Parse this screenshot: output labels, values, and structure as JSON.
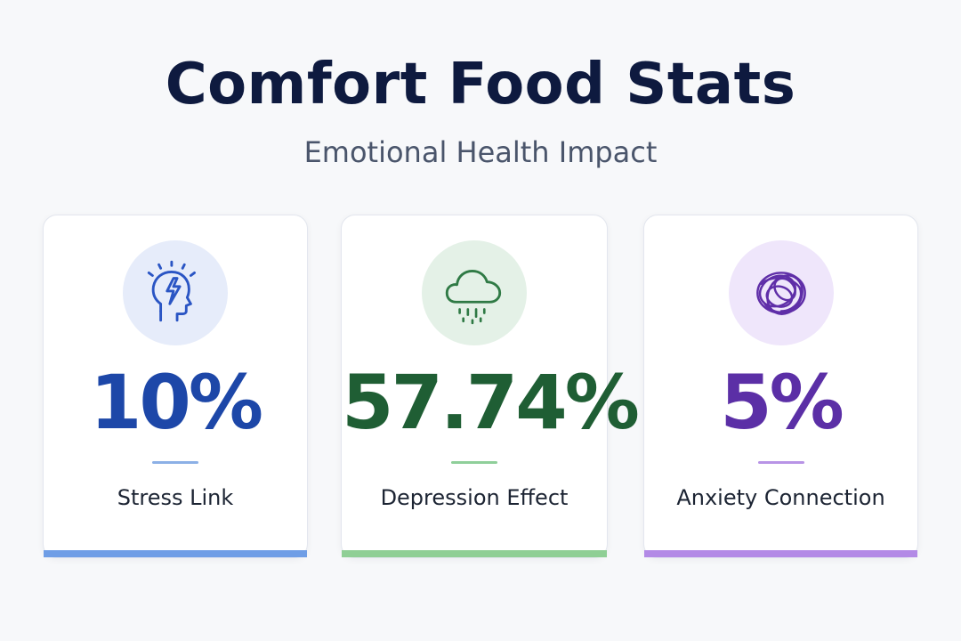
{
  "header": {
    "title": "Comfort Food Stats",
    "subtitle": "Emotional Health Impact"
  },
  "colors": {
    "title": "#0e1a3f",
    "subtitle": "#4a556b",
    "label": "#1c2433",
    "background": "#f7f8fa"
  },
  "cards": [
    {
      "value": "10%",
      "label": "Stress Link",
      "icon": "head-lightning-icon",
      "accent": "#1d47a8",
      "icon_color": "#2a55c4",
      "icon_bg": "#e6ecfa",
      "divider": "#8cb0e6",
      "bar": "#6f9ee6"
    },
    {
      "value": "57.74%",
      "label": "Depression Effect",
      "icon": "rain-cloud-icon",
      "accent": "#1f5e34",
      "icon_color": "#2f7a45",
      "icon_bg": "#e4f1e7",
      "divider": "#8fcf9a",
      "bar": "#8fcf95"
    },
    {
      "value": "5%",
      "label": "Anxiety Connection",
      "icon": "tangled-scribble-icon",
      "accent": "#5b2fa6",
      "icon_color": "#5f2ea8",
      "icon_bg": "#efe6fb",
      "divider": "#b894e6",
      "bar": "#b38ae6"
    }
  ]
}
